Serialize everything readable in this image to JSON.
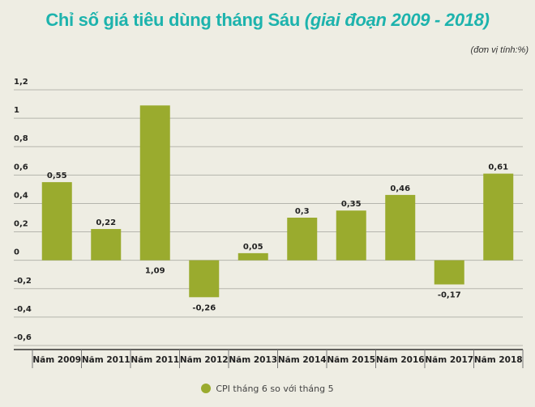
{
  "title": {
    "main": "Chỉ số giá tiêu dùng tháng Sáu",
    "sub": "(giai đoạn 2009 - 2018)"
  },
  "unit_note": "(đơn vị tính:%)",
  "chart_data": {
    "type": "bar",
    "title": "Chỉ số giá tiêu dùng tháng Sáu (giai đoạn 2009 - 2018)",
    "categories": [
      "Năm 2009",
      "Năm 2011",
      "Năm 2011",
      "Năm 2012",
      "Năm 2013",
      "Năm 2014",
      "Năm 2015",
      "Năm 2016",
      "Năm 2017",
      "Năm 2018"
    ],
    "series": [
      {
        "name": "CPI tháng 6 so với tháng 5",
        "values": [
          0.55,
          0.22,
          1.09,
          -0.26,
          0.05,
          0.3,
          0.35,
          0.46,
          -0.17,
          0.61
        ]
      }
    ],
    "data_labels": [
      "0,55",
      "0,22",
      "1,09",
      "-0,26",
      "0,05",
      "0,3",
      "0,35",
      "0,46",
      "-0,17",
      "0,61"
    ],
    "ylim": [
      -0.6,
      1.2
    ],
    "yticks": [
      1.2,
      1,
      0.8,
      0.6,
      0.4,
      0.2,
      0,
      -0.2,
      -0.4,
      -0.6
    ],
    "ytick_labels": [
      "1,2",
      "1",
      "0,8",
      "0,6",
      "0,4",
      "0,2",
      "0",
      "-0,2",
      "-0,4",
      "-0,6"
    ],
    "grid": true,
    "legend": "bottom",
    "colors": {
      "bar": "#9aab2e",
      "title": "#1db3ad",
      "grid": "#b5b5ad"
    }
  }
}
